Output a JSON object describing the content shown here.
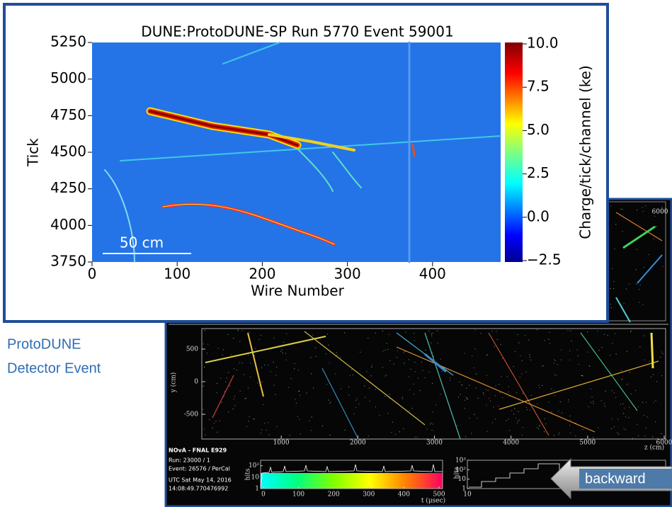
{
  "caption": [
    "ProtoDUNE",
    "Detector Event"
  ],
  "dune": {
    "title": "DUNE:ProtoDUNE-SP Run 5770 Event 59001",
    "xlabel": "Wire Number",
    "ylabel": "Tick",
    "xlim": [
      0,
      480
    ],
    "ylim": [
      3750,
      5250
    ],
    "xticks": [
      0,
      100,
      200,
      300,
      400
    ],
    "yticks": [
      3750,
      4000,
      4250,
      4500,
      4750,
      5000,
      5250
    ],
    "colorbar": {
      "label": "Charge/tick/channel (ke)",
      "lim": [
        -2.5,
        10
      ],
      "ticks": [
        {
          "value": -2.5,
          "label": "−2.5"
        },
        {
          "value": 0,
          "label": "0.0"
        },
        {
          "value": 2.5,
          "label": "2.5"
        },
        {
          "value": 5,
          "label": "5.0"
        },
        {
          "value": 7.5,
          "label": "7.5"
        },
        {
          "value": 10,
          "label": "10.0"
        }
      ]
    },
    "scale_bar": "50 cm"
  },
  "nova": {
    "title": "NOvA - FNAL E929",
    "info": [
      "Run:  23000 / 1",
      "Event: 26576 / PerCal",
      "UTC Sat May 14, 2016",
      "14:08:49.770476992"
    ],
    "top_view": {
      "ticks": [
        6000
      ]
    },
    "main": {
      "xlabel": "z (cm)",
      "ylabel": "y (cm)",
      "xlim": [
        0,
        6000
      ],
      "ylim": [
        -880,
        815
      ],
      "xticks": [
        1000,
        2000,
        3000,
        4000,
        5000,
        6000
      ],
      "yticks": [
        -500,
        0,
        500
      ]
    },
    "time_hist": {
      "ylabel": "hits",
      "xlabel": "t (μsec)",
      "xlim": [
        -8,
        510
      ],
      "ylim": [
        1,
        300
      ],
      "log": true,
      "xticks": [
        0,
        100,
        200,
        300,
        400,
        500
      ],
      "yticks": [
        1,
        10,
        {
          "value": 100,
          "label": "10²"
        }
      ]
    },
    "hit_hist": {
      "ylabel": "hits",
      "xlim": [
        10,
        1000
      ],
      "ylim": [
        1,
        1000
      ],
      "log": true,
      "xticks": [
        10
      ],
      "yticks": [
        1,
        10,
        {
          "value": 100,
          "label": "10²"
        },
        {
          "value": 1000,
          "label": "10³"
        }
      ]
    }
  },
  "button": {
    "label": "backward"
  }
}
